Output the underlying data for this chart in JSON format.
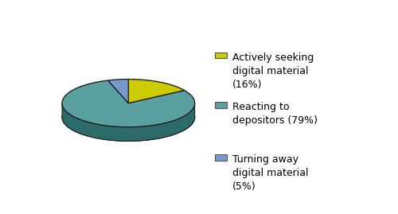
{
  "labels": [
    "Actively seeking\ndigital material\n(16%)",
    "Reacting to\ndepositors (79%)",
    "Turning away\ndigital material\n(5%)"
  ],
  "values": [
    16,
    79,
    5
  ],
  "colors": [
    "#cccc00",
    "#5aa0a0",
    "#7799cc"
  ],
  "side_colors": [
    "#888800",
    "#2d6b6b",
    "#4466aa"
  ],
  "bottom_color": "#2d6b6b",
  "edge_color": "#222222",
  "background_color": "#ffffff",
  "legend_fontsize": 9,
  "figsize": [
    5.0,
    2.69
  ],
  "dpi": 100
}
